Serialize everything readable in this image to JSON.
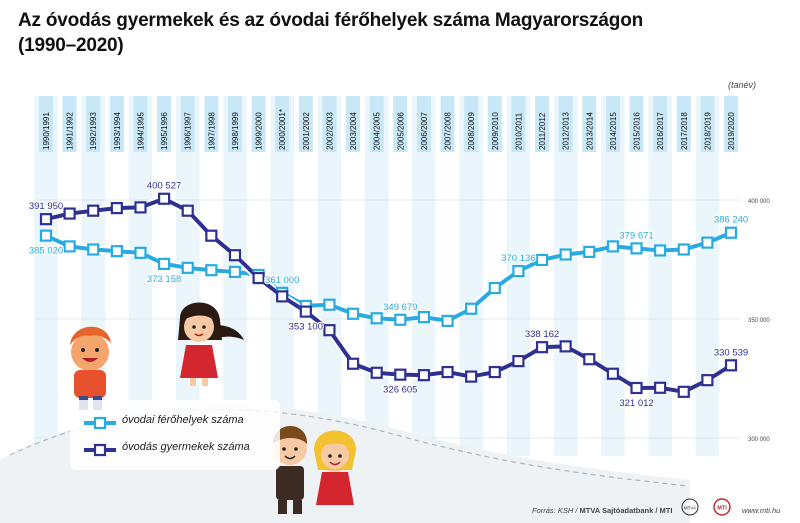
{
  "title_line1": "Az óvodás gyermekek és az óvodai férőhelyek száma Magyarországon",
  "title_line2": "(1990–2020)",
  "unit_label": "(tanév)",
  "source_prefix": "Forrás: KSH / ",
  "source_bold": "MTVA Sajtóadatbank / MTI",
  "website": "www.mti.hu",
  "colors": {
    "capacity": "#29abe2",
    "children": "#2e3192",
    "band_light": "#eaf6fc",
    "band_white": "#ffffff",
    "badge_bg": "#c8e8f7"
  },
  "chart_data": {
    "type": "line",
    "categories": [
      "1990/1991",
      "1991/1992",
      "1992/1993",
      "1993/1994",
      "1994/1995",
      "1995/1996",
      "1996/1997",
      "1997/1998",
      "1998/1999",
      "1999/2000",
      "2000/2001*",
      "2001/2002",
      "2002/2003",
      "2003/2004",
      "2004/2005",
      "2005/2006",
      "2006/2007",
      "2007/2008",
      "2008/2009",
      "2009/2010",
      "2010/2011",
      "2011/2012",
      "2012/2013",
      "2013/2014",
      "2014/2015",
      "2015/2016",
      "2016/2017",
      "2017/2018",
      "2018/2019",
      "2019/2020"
    ],
    "ylim": [
      300000,
      400000
    ],
    "yticks": [
      {
        "value": 300000,
        "label": "300 000"
      },
      {
        "value": 350000,
        "label": "350 000"
      },
      {
        "value": 400000,
        "label": "400 000"
      }
    ],
    "legend_position": "bottom-left",
    "series": [
      {
        "name": "óvodai férőhelyek száma",
        "key": "capacity",
        "values": [
          385020,
          380500,
          379200,
          378500,
          377800,
          373158,
          371500,
          370500,
          369800,
          368500,
          361000,
          355500,
          356000,
          352200,
          350300,
          349679,
          350800,
          349200,
          354300,
          363000,
          370136,
          374800,
          377100,
          378200,
          380500,
          379671,
          378800,
          379200,
          382100,
          386240
        ],
        "labels": [
          {
            "index": 0,
            "text": "385 020",
            "pos": "below"
          },
          {
            "index": 5,
            "text": "373 158",
            "pos": "below"
          },
          {
            "index": 10,
            "text": "361 000",
            "pos": "above"
          },
          {
            "index": 15,
            "text": "349 679",
            "pos": "above"
          },
          {
            "index": 20,
            "text": "370 136",
            "pos": "above"
          },
          {
            "index": 25,
            "text": "379 671",
            "pos": "above"
          },
          {
            "index": 29,
            "text": "386 240",
            "pos": "above"
          }
        ]
      },
      {
        "name": "óvodás gyermekek száma",
        "key": "children",
        "values": [
          391950,
          394300,
          395500,
          396600,
          396900,
          400527,
          395500,
          385000,
          376800,
          367200,
          359500,
          353100,
          345300,
          331200,
          327400,
          326605,
          326400,
          327700,
          325800,
          327700,
          332300,
          338162,
          338500,
          333100,
          327000,
          321012,
          321100,
          319400,
          324300,
          330539
        ],
        "labels": [
          {
            "index": 0,
            "text": "391 950",
            "pos": "above"
          },
          {
            "index": 5,
            "text": "400 527",
            "pos": "above"
          },
          {
            "index": 11,
            "text": "353 100",
            "pos": "below"
          },
          {
            "index": 15,
            "text": "326 605",
            "pos": "below"
          },
          {
            "index": 21,
            "text": "338 162",
            "pos": "above"
          },
          {
            "index": 25,
            "text": "321 012",
            "pos": "below"
          },
          {
            "index": 29,
            "text": "330 539",
            "pos": "above"
          }
        ]
      }
    ]
  }
}
